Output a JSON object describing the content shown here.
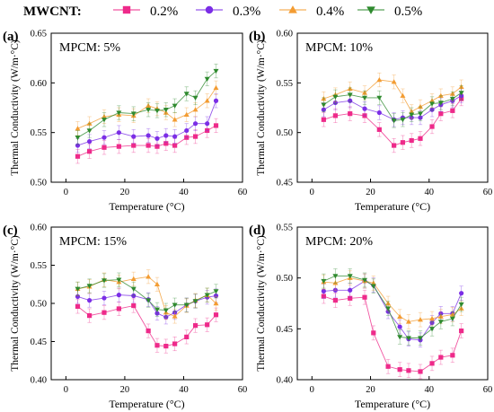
{
  "legend": {
    "title": "MWCNT:",
    "entries": [
      {
        "name": "0.2%",
        "color": "#ee2a8a",
        "marker": "square"
      },
      {
        "name": "0.3%",
        "color": "#7b2ee6",
        "marker": "circle"
      },
      {
        "name": "0.4%",
        "color": "#f39c32",
        "marker": "triangle-up"
      },
      {
        "name": "0.5%",
        "color": "#2e8a2e",
        "marker": "triangle-down"
      }
    ]
  },
  "chart_data": [
    {
      "type": "scatter",
      "panel_label": "(a)",
      "annotation": "MPCM: 5%",
      "xlabel": "Temperature (°C)",
      "ylabel": "Thermal Conductivity (W/m·°C)",
      "xlim": [
        -5,
        60
      ],
      "ylim": [
        0.5,
        0.65
      ],
      "xticks": [
        "0",
        "20",
        "40",
        "60"
      ],
      "xtick_values": [
        0,
        20,
        40,
        60
      ],
      "yticks": [
        "0.50",
        "0.55",
        "0.60",
        "0.65"
      ],
      "ytick_values": [
        0.5,
        0.55,
        0.6,
        0.65
      ],
      "error_bar": 0.007,
      "series": [
        {
          "name": "0.2%",
          "x": [
            4,
            8,
            13,
            18,
            23,
            28,
            31,
            34,
            37,
            41,
            44,
            48,
            51
          ],
          "y": [
            0.526,
            0.531,
            0.535,
            0.536,
            0.537,
            0.537,
            0.536,
            0.539,
            0.537,
            0.545,
            0.546,
            0.552,
            0.557
          ]
        },
        {
          "name": "0.3%",
          "x": [
            4,
            8,
            13,
            18,
            23,
            28,
            31,
            34,
            37,
            41,
            44,
            48,
            51
          ],
          "y": [
            0.537,
            0.541,
            0.545,
            0.55,
            0.546,
            0.547,
            0.544,
            0.547,
            0.546,
            0.552,
            0.559,
            0.559,
            0.582
          ]
        },
        {
          "name": "0.4%",
          "x": [
            4,
            8,
            13,
            18,
            23,
            28,
            31,
            34,
            37,
            41,
            44,
            48,
            51
          ],
          "y": [
            0.554,
            0.559,
            0.566,
            0.568,
            0.567,
            0.577,
            0.574,
            0.57,
            0.563,
            0.568,
            0.573,
            0.582,
            0.595
          ]
        },
        {
          "name": "0.5%",
          "x": [
            4,
            8,
            13,
            18,
            23,
            28,
            31,
            34,
            37,
            41,
            44,
            48,
            51
          ],
          "y": [
            0.545,
            0.552,
            0.563,
            0.57,
            0.569,
            0.573,
            0.572,
            0.573,
            0.577,
            0.589,
            0.585,
            0.604,
            0.612
          ]
        }
      ]
    },
    {
      "type": "scatter",
      "panel_label": "(b)",
      "annotation": "MPCM: 10%",
      "xlabel": "Temperature (°C)",
      "ylabel": "Thermal Conductivity (W/m·°C)",
      "xlim": [
        -5,
        60
      ],
      "ylim": [
        0.45,
        0.6
      ],
      "xticks": [
        "0",
        "20",
        "40",
        "60"
      ],
      "xtick_values": [
        0,
        20,
        40,
        60
      ],
      "yticks": [
        "0.45",
        "0.50",
        "0.55",
        "0.60"
      ],
      "ytick_values": [
        0.45,
        0.5,
        0.55,
        0.6
      ],
      "error_bar": 0.007,
      "series": [
        {
          "name": "0.2%",
          "x": [
            4,
            8,
            13,
            18,
            23,
            28,
            31,
            34,
            37,
            41,
            44,
            48,
            51
          ],
          "y": [
            0.513,
            0.517,
            0.519,
            0.517,
            0.503,
            0.487,
            0.49,
            0.492,
            0.494,
            0.506,
            0.519,
            0.522,
            0.534
          ]
        },
        {
          "name": "0.3%",
          "x": [
            4,
            8,
            13,
            18,
            23,
            28,
            31,
            34,
            37,
            41,
            44,
            48,
            51
          ],
          "y": [
            0.523,
            0.53,
            0.532,
            0.524,
            0.52,
            0.513,
            0.515,
            0.515,
            0.515,
            0.523,
            0.528,
            0.532,
            0.537
          ]
        },
        {
          "name": "0.4%",
          "x": [
            4,
            8,
            13,
            18,
            23,
            28,
            31,
            34,
            37,
            41,
            44,
            48,
            51
          ],
          "y": [
            0.534,
            0.538,
            0.544,
            0.54,
            0.553,
            0.551,
            0.537,
            0.521,
            0.526,
            0.532,
            0.537,
            0.539,
            0.546
          ]
        },
        {
          "name": "0.5%",
          "x": [
            4,
            8,
            13,
            18,
            23,
            28,
            31,
            34,
            37,
            41,
            44,
            48,
            51
          ],
          "y": [
            0.528,
            0.536,
            0.538,
            0.535,
            0.535,
            0.512,
            0.513,
            0.518,
            0.519,
            0.529,
            0.53,
            0.534,
            0.54
          ]
        }
      ]
    },
    {
      "type": "scatter",
      "panel_label": "(c)",
      "annotation": "MPCM: 15%",
      "xlabel": "Temperature (°C)",
      "ylabel": "Thermal Conductivity (W/m·°C)",
      "xlim": [
        -5,
        60
      ],
      "ylim": [
        0.4,
        0.6
      ],
      "xticks": [
        "0",
        "20",
        "40",
        "60"
      ],
      "xtick_values": [
        0,
        20,
        40,
        60
      ],
      "yticks": [
        "0.40",
        "0.45",
        "0.50",
        "0.55",
        "0.60"
      ],
      "ytick_values": [
        0.4,
        0.45,
        0.5,
        0.55,
        0.6
      ],
      "error_bar": 0.009,
      "series": [
        {
          "name": "0.2%",
          "x": [
            4,
            8,
            13,
            18,
            23,
            28,
            31,
            34,
            37,
            41,
            44,
            48,
            51
          ],
          "y": [
            0.496,
            0.484,
            0.488,
            0.493,
            0.497,
            0.464,
            0.445,
            0.444,
            0.447,
            0.456,
            0.471,
            0.472,
            0.485
          ]
        },
        {
          "name": "0.3%",
          "x": [
            4,
            8,
            13,
            18,
            23,
            28,
            31,
            34,
            37,
            41,
            44,
            48,
            51
          ],
          "y": [
            0.509,
            0.504,
            0.507,
            0.511,
            0.51,
            0.505,
            0.487,
            0.482,
            0.488,
            0.498,
            0.503,
            0.508,
            0.51
          ]
        },
        {
          "name": "0.4%",
          "x": [
            4,
            8,
            13,
            18,
            23,
            28,
            31,
            34,
            37,
            41,
            44,
            48,
            51
          ],
          "y": [
            0.519,
            0.522,
            0.531,
            0.528,
            0.532,
            0.535,
            0.525,
            0.488,
            0.483,
            0.497,
            0.504,
            0.511,
            0.5
          ]
        },
        {
          "name": "0.5%",
          "x": [
            4,
            8,
            13,
            18,
            23,
            28,
            31,
            34,
            37,
            41,
            44,
            48,
            51
          ],
          "y": [
            0.519,
            0.523,
            0.53,
            0.531,
            0.519,
            0.504,
            0.492,
            0.491,
            0.498,
            0.498,
            0.503,
            0.511,
            0.516
          ]
        }
      ]
    },
    {
      "type": "scatter",
      "panel_label": "(d)",
      "annotation": "MPCM: 20%",
      "xlabel": "Temperature (°C)",
      "ylabel": "Thermal Conductivity (W/m·°C)",
      "xlim": [
        -5,
        60
      ],
      "ylim": [
        0.4,
        0.55
      ],
      "xticks": [
        "0",
        "20",
        "40",
        "60"
      ],
      "xtick_values": [
        0,
        20,
        40,
        60
      ],
      "yticks": [
        "0.40",
        "0.45",
        "0.50",
        "0.55"
      ],
      "ytick_values": [
        0.4,
        0.45,
        0.5,
        0.55
      ],
      "error_bar": 0.007,
      "series": [
        {
          "name": "0.2%",
          "x": [
            4,
            8,
            13,
            18,
            21,
            26,
            30,
            33,
            37,
            41,
            44,
            48,
            51
          ],
          "y": [
            0.482,
            0.478,
            0.48,
            0.481,
            0.446,
            0.413,
            0.41,
            0.409,
            0.408,
            0.416,
            0.422,
            0.424,
            0.448
          ]
        },
        {
          "name": "0.3%",
          "x": [
            4,
            8,
            13,
            18,
            21,
            26,
            30,
            33,
            37,
            41,
            44,
            48,
            51
          ],
          "y": [
            0.487,
            0.488,
            0.488,
            0.497,
            0.493,
            0.467,
            0.452,
            0.44,
            0.439,
            0.456,
            0.465,
            0.465,
            0.485
          ]
        },
        {
          "name": "0.4%",
          "x": [
            4,
            8,
            13,
            18,
            21,
            26,
            30,
            33,
            37,
            41,
            44,
            48,
            51
          ],
          "y": [
            0.496,
            0.495,
            0.5,
            0.497,
            0.495,
            0.475,
            0.462,
            0.457,
            0.459,
            0.46,
            0.462,
            0.464,
            0.47
          ]
        },
        {
          "name": "0.5%",
          "x": [
            4,
            8,
            13,
            18,
            21,
            26,
            30,
            33,
            37,
            41,
            44,
            48,
            51
          ],
          "y": [
            0.497,
            0.502,
            0.502,
            0.498,
            0.492,
            0.47,
            0.442,
            0.441,
            0.441,
            0.45,
            0.457,
            0.46,
            0.474
          ]
        }
      ]
    }
  ]
}
